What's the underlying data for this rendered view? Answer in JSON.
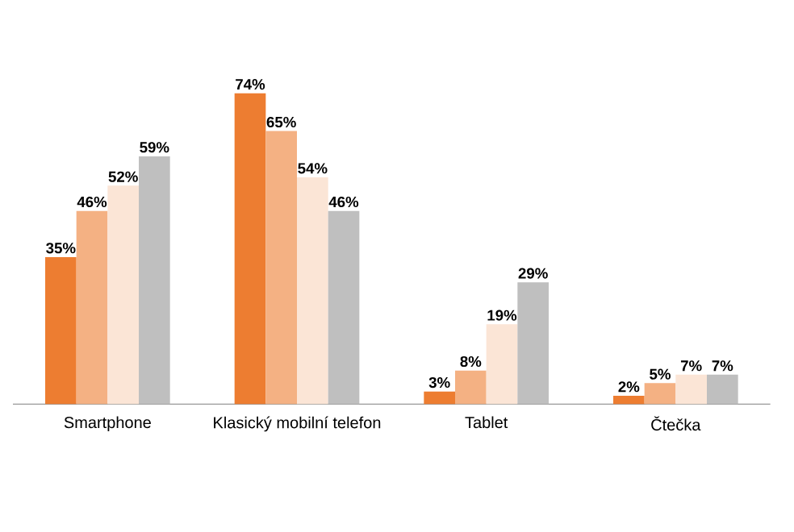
{
  "chart_data": {
    "type": "bar",
    "categories": [
      "Smartphone",
      "Klasický mobilní telefon",
      "Tablet",
      "Čtečka"
    ],
    "series": [
      {
        "color": "#ed7d31",
        "values": [
          35,
          74,
          3,
          2
        ],
        "value_labels": [
          "35%",
          "74%",
          "3%",
          "2%"
        ]
      },
      {
        "color": "#f4b183",
        "values": [
          46,
          65,
          8,
          5
        ],
        "value_labels": [
          "46%",
          "65%",
          "8%",
          "5%"
        ]
      },
      {
        "color": "#fbe5d6",
        "values": [
          52,
          54,
          19,
          7
        ],
        "value_labels": [
          "52%",
          "54%",
          "19%",
          "7%"
        ]
      },
      {
        "color": "#bfbfbf",
        "values": [
          59,
          46,
          29,
          7
        ],
        "value_labels": [
          "59%",
          "46%",
          "29%",
          "7%"
        ]
      }
    ]
  }
}
